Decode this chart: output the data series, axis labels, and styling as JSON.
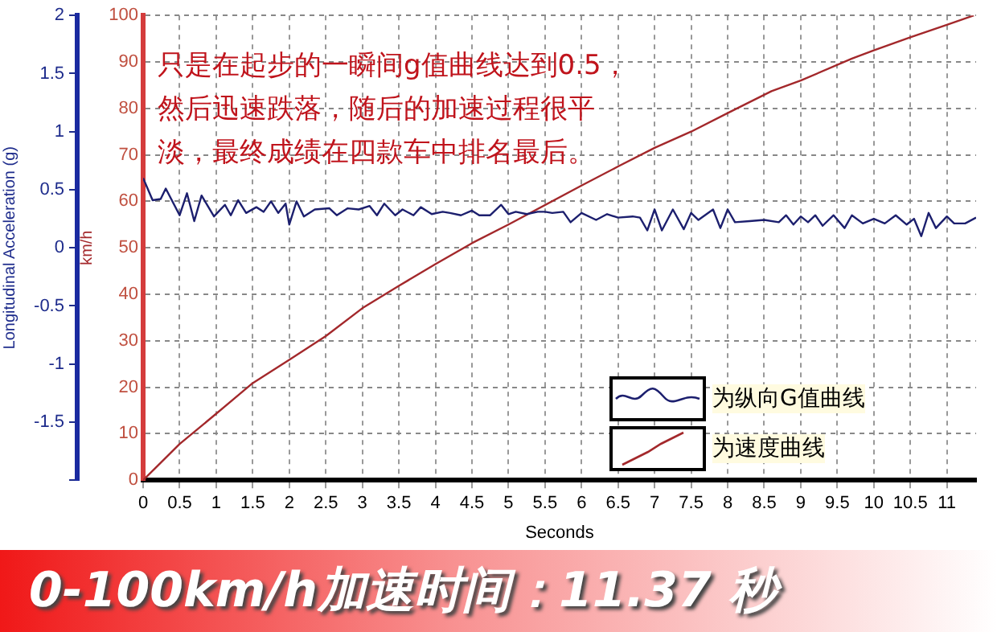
{
  "chart_data": {
    "type": "line",
    "title": "0-100km/h加速时间：11.37 秒",
    "xlabel": "Seconds",
    "ylabel": "Longitudinal Acceleration (g)",
    "y2label": "km/h",
    "annotations": [
      "只是在起步的一瞬间g值曲线达到0.5，然后迅速跌落，随后的加速过程很平淡，最终成绩在四款车中排名最后。"
    ],
    "xlim": [
      0,
      11.4
    ],
    "xticks": [
      0,
      0.5,
      1,
      1.5,
      2,
      2.5,
      3,
      3.5,
      4,
      4.5,
      5,
      5.5,
      6,
      6.5,
      7,
      7.5,
      8,
      8.5,
      9,
      9.5,
      10,
      10.5,
      11
    ],
    "ylim": [
      -2,
      2
    ],
    "yticks": [
      2,
      1.5,
      1,
      0.5,
      0,
      -0.5,
      -1,
      -1.5,
      {
        "value": -2,
        "label": null
      }
    ],
    "y2lim": [
      0,
      100
    ],
    "y2ticks": [
      0,
      10,
      20,
      30,
      40,
      50,
      60,
      70,
      80,
      90,
      100
    ],
    "grid": true,
    "legend": "bottom right",
    "marker": "none",
    "line_style": "solid",
    "series": [
      {
        "name": "为纵向G值曲线",
        "color": "#1c1f6e",
        "x": [
          0,
          0.13,
          0.24,
          0.31,
          0.5,
          0.6,
          0.7,
          0.8,
          0.97,
          1.12,
          1.2,
          1.3,
          1.41,
          1.55,
          1.65,
          1.75,
          1.85,
          1.95,
          2.0,
          2.1,
          2.2,
          2.35,
          2.55,
          2.65,
          2.8,
          2.95,
          3.1,
          3.2,
          3.3,
          3.45,
          3.55,
          3.7,
          3.8,
          3.95,
          4.1,
          4.2,
          4.35,
          4.5,
          4.6,
          4.75,
          4.9,
          5.0,
          5.1,
          5.25,
          5.4,
          5.5,
          5.6,
          5.75,
          5.85,
          6.0,
          6.2,
          6.35,
          6.5,
          6.7,
          6.8,
          6.9,
          7.0,
          7.1,
          7.25,
          7.4,
          7.5,
          7.6,
          7.8,
          7.9,
          8.0,
          8.1,
          8.3,
          8.5,
          8.7,
          8.8,
          8.9,
          9.0,
          9.1,
          9.2,
          9.3,
          9.45,
          9.6,
          9.7,
          9.85,
          10.0,
          10.15,
          10.3,
          10.45,
          10.55,
          10.65,
          10.75,
          10.85,
          11.0,
          11.1,
          11.25,
          11.4
        ],
        "values": [
          0.6,
          0.41,
          0.42,
          0.51,
          0.28,
          0.47,
          0.23,
          0.45,
          0.27,
          0.37,
          0.28,
          0.41,
          0.3,
          0.35,
          0.31,
          0.4,
          0.3,
          0.38,
          0.2,
          0.4,
          0.27,
          0.33,
          0.34,
          0.28,
          0.34,
          0.33,
          0.36,
          0.28,
          0.38,
          0.28,
          0.33,
          0.28,
          0.35,
          0.29,
          0.31,
          0.3,
          0.28,
          0.32,
          0.28,
          0.28,
          0.37,
          0.29,
          0.31,
          0.29,
          0.31,
          0.31,
          0.3,
          0.31,
          0.22,
          0.3,
          0.24,
          0.29,
          0.26,
          0.27,
          0.26,
          0.15,
          0.33,
          0.15,
          0.33,
          0.16,
          0.3,
          0.24,
          0.33,
          0.17,
          0.33,
          0.22,
          0.23,
          0.24,
          0.22,
          0.28,
          0.2,
          0.27,
          0.22,
          0.28,
          0.19,
          0.28,
          0.17,
          0.28,
          0.21,
          0.25,
          0.21,
          0.28,
          0.2,
          0.25,
          0.1,
          0.3,
          0.17,
          0.27,
          0.21,
          0.21,
          0.26
        ]
      },
      {
        "name": "为速度曲线",
        "color": "#a3282b",
        "axis": "y2",
        "x": [
          0,
          0.5,
          1,
          1.5,
          2,
          2.5,
          3,
          3.5,
          4,
          4.5,
          5,
          6,
          6.5,
          7,
          7.5,
          8,
          8.6,
          9,
          9.7,
          10,
          10.5,
          11,
          11.37
        ],
        "values": [
          0,
          7.8,
          14.3,
          20.9,
          25.9,
          31,
          37,
          41.8,
          46.5,
          51,
          55,
          63.4,
          67.5,
          71.5,
          75,
          79,
          83.7,
          86,
          90.7,
          92.5,
          95.3,
          98,
          100
        ]
      }
    ]
  }
}
